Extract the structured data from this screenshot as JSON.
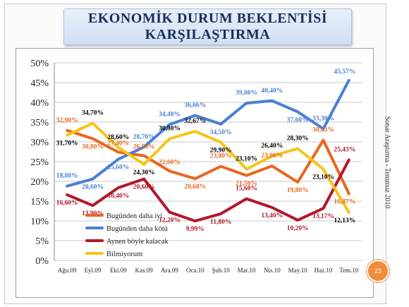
{
  "title": {
    "line1": "EKONOMİK DURUM BEKLENTİSİ",
    "line2": "KARŞILAŞTIRMA"
  },
  "side_text": "Sonar Araştırma - Temmuz 2010",
  "page_number": "23",
  "chart_data": {
    "type": "line",
    "categories": [
      "Ağu.09",
      "Eyl.09",
      "Eki.09",
      "Kas.09",
      "Ara.09",
      "Oca.10",
      "Şub.10",
      "Mar.10",
      "Nis.10",
      "May.10",
      "Haz.10",
      "Tem.10"
    ],
    "yticks": [
      "0%",
      "5%",
      "10%",
      "15%",
      "20%",
      "25%",
      "30%",
      "35%",
      "40%",
      "45%",
      "50%"
    ],
    "ylim": [
      0,
      50
    ],
    "legend_position": "bottom-left",
    "series": [
      {
        "name": "Bugünden daha iyi",
        "color": "#e8671e",
        "values": [
          32.9,
          30.8,
          27.4,
          26.5,
          22.6,
          20.68,
          23.8,
          21.5,
          23.9,
          19.8,
          30.43,
          16.87
        ],
        "labels": [
          "32,90%",
          "30,80%",
          "27,40%",
          "26,50%",
          "22,60%",
          "20,68%",
          "23,80%",
          "21,50%",
          "23,90%",
          "19,80%",
          "30,43%",
          "16,87%"
        ]
      },
      {
        "name": "Bugünden daha kötü",
        "color": "#4a7fd4",
        "values": [
          18.8,
          20.6,
          25.6,
          28.7,
          34.4,
          36.66,
          34.5,
          39.8,
          40.4,
          37.6,
          33.3,
          45.57
        ],
        "labels": [
          "18,80%",
          "20,60%",
          "25,60%",
          "28,70%",
          "34,40%",
          "36,66%",
          "34,50%",
          "39,80%",
          "40,40%",
          "37,60%",
          "33,30%",
          "45,57%"
        ]
      },
      {
        "name": "Aynen böyle kalacak",
        "color": "#b0182a",
        "values": [
          16.6,
          13.9,
          18.4,
          20.6,
          12.2,
          9.99,
          11.8,
          15.6,
          13.4,
          10.2,
          13.17,
          25.43
        ],
        "labels": [
          "16,60%",
          "13,90%",
          "18,40%",
          "20,60%",
          "12,20%",
          "9,99%",
          "11,80%",
          "15,60%",
          "13,40%",
          "10,20%",
          "13,17%",
          "25,43%"
        ]
      },
      {
        "name": "Bilmiyorum",
        "color": "#f5c518",
        "values": [
          31.7,
          34.7,
          28.6,
          24.3,
          30.8,
          32.67,
          29.9,
          23.1,
          26.4,
          28.3,
          23.1,
          12.13
        ],
        "labels": [
          "31,70%",
          "34,70%",
          "28,60%",
          "24,30%",
          "30,80%",
          "32,67%",
          "29,90%",
          "23,10%",
          "26,40%",
          "28,30%",
          "23,10%",
          "12,13%"
        ]
      }
    ]
  }
}
